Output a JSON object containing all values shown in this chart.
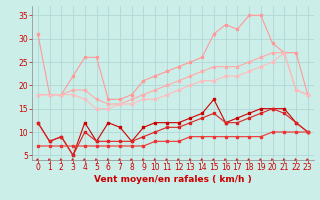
{
  "background_color": "#cceee8",
  "grid_color": "#b0d8d8",
  "title": "Vent moyen/en rafales ( km/h )",
  "xlim": [
    -0.5,
    23.5
  ],
  "ylim": [
    4,
    37
  ],
  "yticks": [
    5,
    10,
    15,
    20,
    25,
    30,
    35
  ],
  "xticks": [
    0,
    1,
    2,
    3,
    4,
    5,
    6,
    7,
    8,
    9,
    10,
    11,
    12,
    13,
    14,
    15,
    16,
    17,
    18,
    19,
    20,
    21,
    22,
    23
  ],
  "series": [
    {
      "x": [
        0,
        1,
        2,
        3,
        4,
        5,
        6,
        7,
        8,
        9,
        10,
        11,
        12,
        13,
        14,
        15,
        16,
        17,
        18,
        19,
        20,
        21,
        22,
        23
      ],
      "y": [
        31,
        18,
        18,
        22,
        26,
        26,
        17,
        17,
        18,
        21,
        22,
        23,
        24,
        25,
        26,
        31,
        33,
        32,
        35,
        35,
        29,
        27,
        27,
        18
      ],
      "color": "#ff9999",
      "lw": 0.8,
      "marker": "s",
      "ms": 1.8
    },
    {
      "x": [
        0,
        1,
        2,
        3,
        4,
        5,
        6,
        7,
        8,
        9,
        10,
        11,
        12,
        13,
        14,
        15,
        16,
        17,
        18,
        19,
        20,
        21,
        22,
        23
      ],
      "y": [
        18,
        18,
        18,
        19,
        19,
        17,
        16,
        16,
        17,
        18,
        19,
        20,
        21,
        22,
        23,
        24,
        24,
        24,
        25,
        26,
        27,
        27,
        19,
        18
      ],
      "color": "#ffaaaa",
      "lw": 0.8,
      "marker": "s",
      "ms": 1.8
    },
    {
      "x": [
        0,
        1,
        2,
        3,
        4,
        5,
        6,
        7,
        8,
        9,
        10,
        11,
        12,
        13,
        14,
        15,
        16,
        17,
        18,
        19,
        20,
        21,
        22,
        23
      ],
      "y": [
        18,
        18,
        18,
        18,
        17,
        15,
        15,
        16,
        16,
        17,
        17,
        18,
        19,
        20,
        21,
        21,
        22,
        22,
        23,
        24,
        25,
        27,
        19,
        18
      ],
      "color": "#ffbbbb",
      "lw": 0.8,
      "marker": "s",
      "ms": 1.8
    },
    {
      "x": [
        0,
        1,
        2,
        3,
        4,
        5,
        6,
        7,
        8,
        9,
        10,
        11,
        12,
        13,
        14,
        15,
        16,
        17,
        18,
        19,
        20,
        21,
        22,
        23
      ],
      "y": [
        12,
        8,
        9,
        5,
        12,
        8,
        12,
        11,
        8,
        11,
        12,
        12,
        12,
        13,
        14,
        17,
        12,
        13,
        14,
        15,
        15,
        15,
        12,
        10
      ],
      "color": "#cc0000",
      "lw": 0.8,
      "marker": "s",
      "ms": 1.8
    },
    {
      "x": [
        0,
        1,
        2,
        3,
        4,
        5,
        6,
        7,
        8,
        9,
        10,
        11,
        12,
        13,
        14,
        15,
        16,
        17,
        18,
        19,
        20,
        21,
        22,
        23
      ],
      "y": [
        12,
        8,
        9,
        5,
        10,
        8,
        8,
        8,
        8,
        9,
        10,
        11,
        11,
        12,
        13,
        14,
        12,
        12,
        13,
        14,
        15,
        14,
        12,
        10
      ],
      "color": "#dd2222",
      "lw": 0.8,
      "marker": "s",
      "ms": 1.8
    },
    {
      "x": [
        0,
        1,
        2,
        3,
        4,
        5,
        6,
        7,
        8,
        9,
        10,
        11,
        12,
        13,
        14,
        15,
        16,
        17,
        18,
        19,
        20,
        21,
        22,
        23
      ],
      "y": [
        7,
        7,
        7,
        7,
        7,
        7,
        7,
        7,
        7,
        7,
        8,
        8,
        8,
        9,
        9,
        9,
        9,
        9,
        9,
        9,
        10,
        10,
        10,
        10
      ],
      "color": "#ee3333",
      "lw": 0.8,
      "marker": "s",
      "ms": 1.5
    }
  ],
  "arrow_color": "#cc2222",
  "tick_color": "#cc0000",
  "label_color": "#cc0000",
  "label_fontsize": 6.5,
  "tick_fontsize": 5.5
}
